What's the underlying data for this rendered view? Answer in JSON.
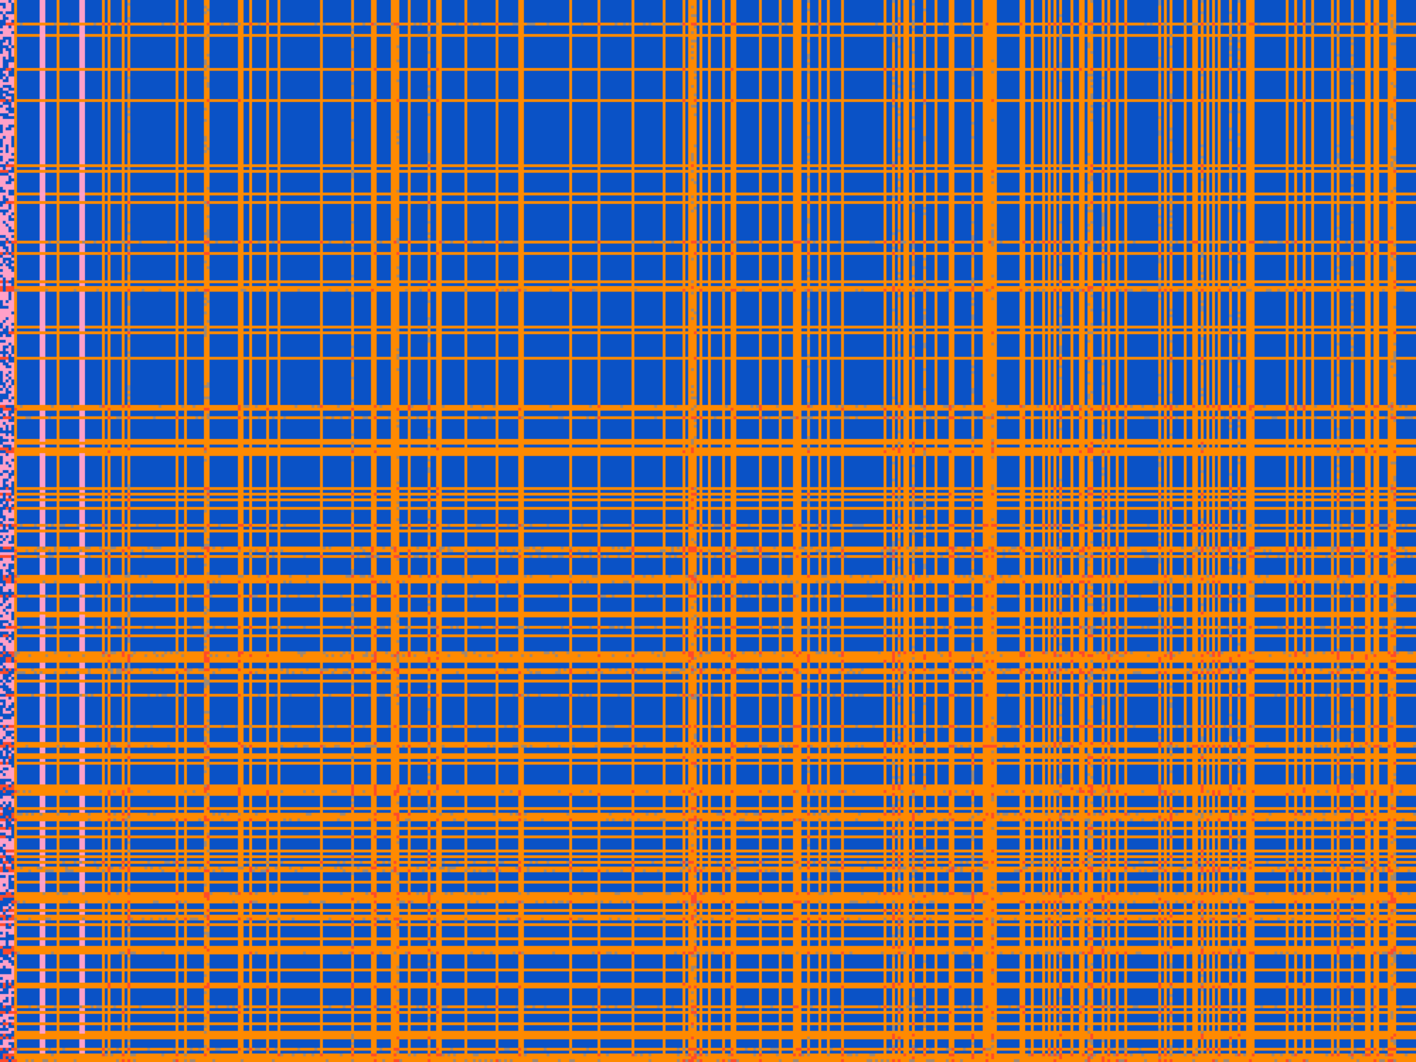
{
  "colors": {
    "blue": "#0a52c6",
    "orange": "#ff8a00",
    "red": "#ff4a2a",
    "pink": "#ffa0c8",
    "grey": "#a08870"
  }
}
